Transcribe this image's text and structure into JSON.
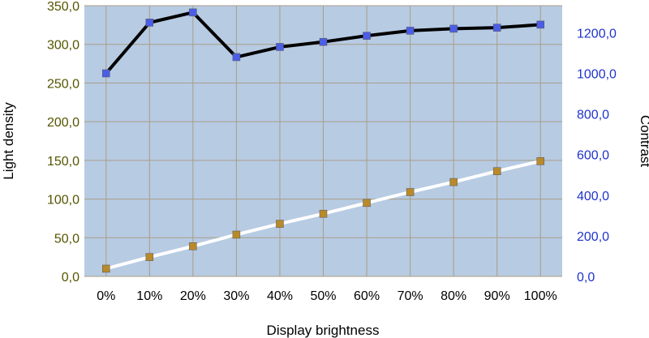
{
  "chart_data": {
    "type": "line",
    "xlabel": "Display brightness",
    "ylabel": "Light density",
    "y2label": "Contrast",
    "categories": [
      "0%",
      "10%",
      "20%",
      "30%",
      "40%",
      "50%",
      "60%",
      "70%",
      "80%",
      "90%",
      "100%"
    ],
    "ylim": [
      0,
      350
    ],
    "y2lim": [
      0,
      1333.33
    ],
    "yticks": [
      "0,0",
      "50,0",
      "100,0",
      "150,0",
      "200,0",
      "250,0",
      "300,0",
      "350,0"
    ],
    "y2ticks": [
      "0,0",
      "200,0",
      "400,0",
      "600,0",
      "800,0",
      "1000,0",
      "1200,0"
    ],
    "grid": true,
    "legend": "none",
    "series": [
      {
        "axis": "right",
        "values": [
          1000,
          1250,
          1300,
          1080,
          1130,
          1155,
          1185,
          1210,
          1220,
          1225,
          1240
        ],
        "line_color": "#000000",
        "marker_color": "#4b5ee6"
      },
      {
        "axis": "left",
        "values": [
          10,
          25,
          39,
          54,
          68,
          81,
          95,
          109,
          122,
          136,
          149
        ],
        "line_color": "#ffffff",
        "marker_color": "#b88a2a"
      }
    ],
    "colors": {
      "plot_background": "#b7cbe3",
      "grid": "#a89e86",
      "left_axis_text": "#555500",
      "right_axis_text": "#1f33cc"
    }
  }
}
